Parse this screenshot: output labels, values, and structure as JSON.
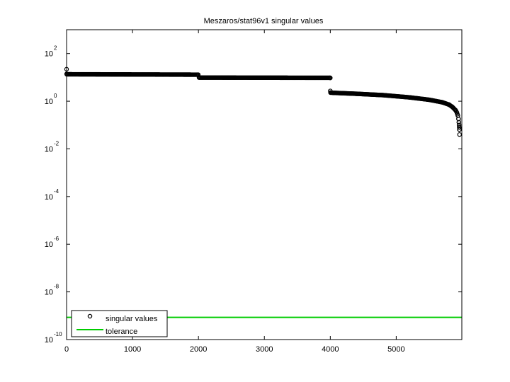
{
  "chart_data": {
    "type": "scatter",
    "title": "Meszaros/stat96v1 singular values",
    "xlabel": "",
    "ylabel": "",
    "y_scale": "log",
    "xlim": [
      0,
      5995
    ],
    "ylim": [
      1e-10,
      1000
    ],
    "x_ticks": [
      0,
      1000,
      2000,
      3000,
      4000,
      5000
    ],
    "y_ticks": [
      {
        "value": 100,
        "base": "10",
        "exp": "2"
      },
      {
        "value": 1,
        "base": "10",
        "exp": "0"
      },
      {
        "value": 0.01,
        "base": "10",
        "exp": "-2"
      },
      {
        "value": 0.0001,
        "base": "10",
        "exp": "-4"
      },
      {
        "value": 1e-06,
        "base": "10",
        "exp": "-6"
      },
      {
        "value": 1e-08,
        "base": "10",
        "exp": "-8"
      },
      {
        "value": 1e-10,
        "base": "10",
        "exp": "-10"
      }
    ],
    "grid": false,
    "legend_position": "bottom-left",
    "series": [
      {
        "name": "singular values",
        "marker": "circle",
        "color": "#000000",
        "segments": [
          {
            "x": [
              0,
              1
            ],
            "y": [
              22,
              14
            ]
          },
          {
            "x": [
              2,
              1995
            ],
            "y": [
              13.5,
              13
            ]
          },
          {
            "x": [
              1996,
              2009
            ],
            "y": [
              13,
              10
            ]
          },
          {
            "x": [
              2010,
              3995
            ],
            "y": [
              9.8,
              9.6
            ]
          },
          {
            "x": [
              3996,
              4000
            ],
            "y": [
              9.6,
              9.5
            ]
          }
        ],
        "tail": {
          "x": [
            4000,
            4003,
            4050,
            4400,
            4800,
            5200,
            5500,
            5700,
            5800,
            5850,
            5900,
            5920,
            5935,
            5945,
            5950,
            5953,
            5956,
            5958,
            5960
          ],
          "y": [
            2.7,
            2.3,
            2.25,
            2.05,
            1.8,
            1.45,
            1.15,
            0.9,
            0.72,
            0.58,
            0.42,
            0.33,
            0.25,
            0.18,
            0.13,
            0.1,
            0.08,
            0.065,
            0.04
          ]
        }
      },
      {
        "name": "tolerance",
        "marker": "line",
        "color": "#00cc00",
        "x": [
          0,
          5995
        ],
        "y": [
          8.5e-10,
          8.5e-10
        ]
      }
    ]
  }
}
